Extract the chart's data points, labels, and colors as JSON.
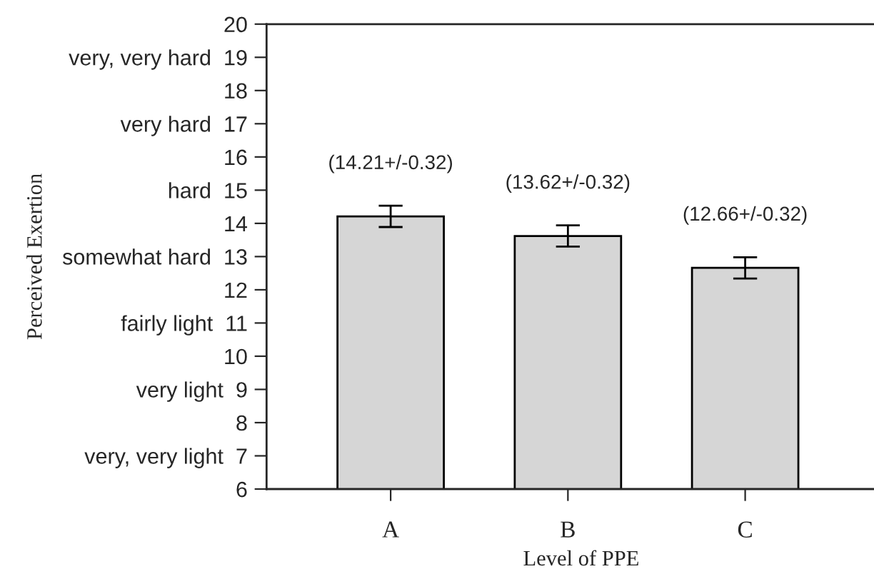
{
  "chart_data": {
    "type": "bar",
    "xlabel": "Level of PPE",
    "ylabel": "Perceived Exertion",
    "categories": [
      "A",
      "B",
      "C"
    ],
    "series": [
      {
        "color": "#d6d6d6",
        "values": [
          14.21,
          13.62,
          12.66
        ],
        "errors": [
          0.32,
          0.32,
          0.32
        ],
        "value_labels": [
          "(14.21+/-0.32)",
          "(13.62+/-0.32)",
          "(12.66+/-0.32)"
        ]
      }
    ],
    "ylim": [
      6,
      20
    ],
    "yticks": [
      6,
      {
        "value": 7,
        "label": "very, very light  7"
      },
      8,
      {
        "value": 9,
        "label": "very light  9"
      },
      10,
      {
        "value": 11,
        "label": "fairly light  11"
      },
      12,
      {
        "value": 13,
        "label": "somewhat hard  13"
      },
      14,
      {
        "value": 15,
        "label": "hard  15"
      },
      16,
      {
        "value": 17,
        "label": "very hard  17"
      },
      18,
      {
        "value": 19,
        "label": "very, very hard  19"
      },
      20
    ],
    "grid": false
  }
}
